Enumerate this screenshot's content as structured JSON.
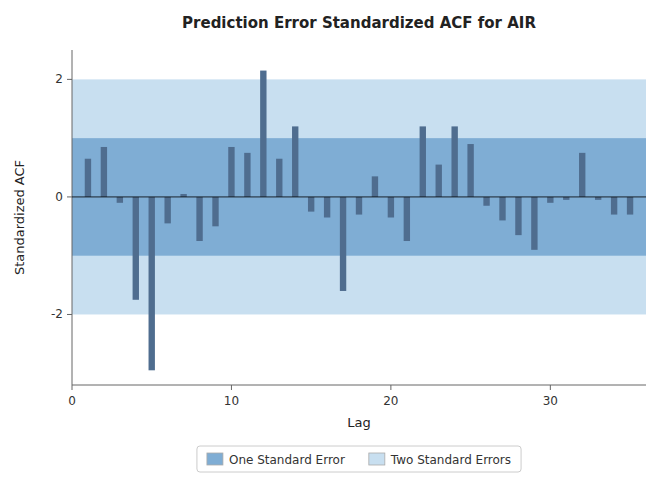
{
  "chart_data": {
    "type": "bar",
    "title": "Prediction Error Standardized ACF for AIR",
    "x_label": "Lag",
    "y_label": "Standardized ACF",
    "x": [
      1,
      2,
      3,
      4,
      5,
      6,
      7,
      8,
      9,
      10,
      11,
      12,
      13,
      14,
      15,
      16,
      17,
      18,
      19,
      20,
      21,
      22,
      23,
      24,
      25,
      26,
      27,
      28,
      29,
      30,
      31,
      32,
      33,
      34,
      35
    ],
    "values": [
      0.65,
      0.85,
      -0.1,
      -1.75,
      -2.95,
      -0.45,
      0.05,
      -0.75,
      -0.5,
      0.85,
      0.75,
      2.15,
      0.65,
      1.2,
      -0.25,
      -0.35,
      -1.6,
      -0.3,
      0.35,
      -0.35,
      -0.75,
      1.2,
      0.55,
      1.2,
      0.9,
      -0.15,
      -0.4,
      -0.65,
      -0.9,
      -0.1,
      -0.05,
      0.75,
      -0.05,
      -0.3,
      -0.3
    ],
    "color": "#4f6d8f",
    "bands": [
      {
        "name": "One Standard Error",
        "lower": -1.0,
        "upper": 1.0,
        "color": "#7fadd4"
      },
      {
        "name": "Two Standard Errors",
        "lower": -2.0,
        "upper": 2.0,
        "color": "#c8dff0"
      }
    ],
    "xlim": [
      0,
      36
    ],
    "ylim": [
      -3.2,
      2.5
    ],
    "xticks": [
      0,
      10,
      20,
      30
    ],
    "yticks": [
      -2,
      0,
      2
    ],
    "grid": false,
    "legend": "bottom"
  }
}
